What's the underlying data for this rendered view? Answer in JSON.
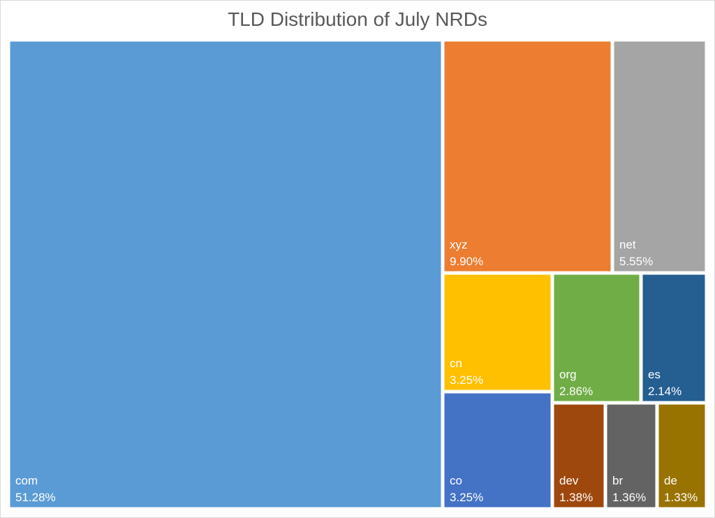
{
  "chart_data": {
    "type": "treemap",
    "title": "TLD Distribution of July NRDs",
    "items": [
      {
        "name": "com",
        "value": 51.28,
        "label": "51.28%",
        "color": "#5B9BD5"
      },
      {
        "name": "xyz",
        "value": 9.9,
        "label": "9.90%",
        "color": "#ED7D31"
      },
      {
        "name": "net",
        "value": 5.55,
        "label": "5.55%",
        "color": "#A5A5A5"
      },
      {
        "name": "cn",
        "value": 3.25,
        "label": "3.25%",
        "color": "#FFC000"
      },
      {
        "name": "org",
        "value": 2.86,
        "label": "2.86%",
        "color": "#70AD47"
      },
      {
        "name": "es",
        "value": 2.14,
        "label": "2.14%",
        "color": "#255E91"
      },
      {
        "name": "co",
        "value": 3.25,
        "label": "3.25%",
        "color": "#4472C4"
      },
      {
        "name": "dev",
        "value": 1.38,
        "label": "1.38%",
        "color": "#9E480E"
      },
      {
        "name": "br",
        "value": 1.36,
        "label": "1.36%",
        "color": "#636363"
      },
      {
        "name": "de",
        "value": 1.33,
        "label": "1.33%",
        "color": "#997300"
      }
    ]
  }
}
